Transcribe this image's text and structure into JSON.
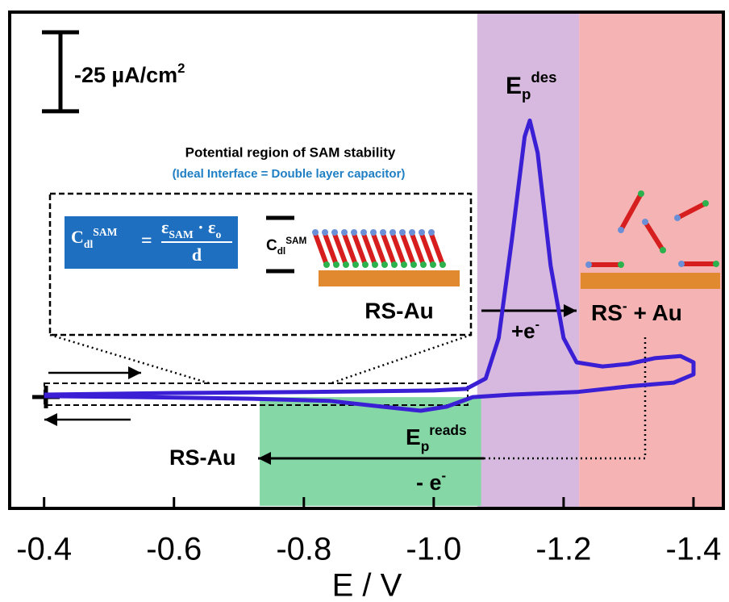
{
  "chart_data": {
    "type": "line",
    "x_label": "E / V",
    "xlim": [
      -0.347,
      -1.446
    ],
    "ylim": [
      36,
      -121
    ],
    "xticks": [
      -0.4,
      -0.6,
      -0.8,
      {
        "value": -1,
        "label": "-1.0"
      },
      -1.2,
      -1.4
    ],
    "color": "#3a1fd4",
    "x": [
      -0.4,
      -0.6,
      -0.8,
      -1.0,
      -1.05,
      -1.08,
      -1.1,
      -1.12,
      -1.14,
      -1.148,
      -1.16,
      -1.18,
      -1.2,
      -1.22,
      -1.26,
      -1.3,
      -1.34,
      -1.38,
      -1.4,
      -1.4,
      -1.37,
      -1.3,
      -1.22,
      -1.12,
      -1.06,
      -1.02,
      -0.98,
      -0.92,
      -0.84,
      -0.72,
      -0.55,
      -0.4
    ],
    "values": [
      0,
      -0.5,
      -0.8,
      -1.3,
      -1.8,
      -5.1,
      -17.9,
      -48.5,
      -81.6,
      -86.7,
      -76.5,
      -40.8,
      -17.9,
      -10.2,
      -8.9,
      -9.7,
      -11.5,
      -12.2,
      -10.2,
      -6.4,
      -3.8,
      -2.6,
      -0.8,
      0,
      0.8,
      3.8,
      5.1,
      3.8,
      2.0,
      1.3,
      0.8,
      0.5
    ],
    "regions": [
      {
        "xlim": [
          -1.067,
          -1.224
        ],
        "color": "#d7b9df"
      },
      {
        "xlim": [
          -1.224,
          -1.446
        ],
        "color": "#f6b3b3"
      },
      {
        "xlim": [
          -0.732,
          -1.073
        ],
        "ylim": [
          0.8,
          35.2
        ],
        "color": "#86d7a6"
      }
    ],
    "scale_bar": {
      "value": -25,
      "label": "-25 µA/cm",
      "label_sup": "2"
    },
    "peak_label": {
      "main": "E",
      "sub": "p",
      "sup": "des"
    },
    "box_title": "Potential region of SAM stability",
    "box_subtitle": "(Ideal Interface = Double layer capacitor)",
    "equation": {
      "lhs": "C",
      "lhs_sub": "dl",
      "lhs_sup": "SAM",
      "eq": "=",
      "num": "ε",
      "num_sub": "SAM",
      "num2": " · ε",
      "num2_sub": "o",
      "den": "d"
    },
    "capacitor_label": {
      "main": "C",
      "sub": "dl",
      "sup": "SAM"
    },
    "sam_label": "RS-Au",
    "reduction_label": {
      "main": "+e",
      "sup": "-"
    },
    "product_label": {
      "main": "RS",
      "sup": "-",
      "rest": " + Au"
    },
    "readsorption_product": "RS-Au",
    "readsorption_peak": {
      "main": "E",
      "sub": "p",
      "sup": "reads"
    },
    "oxidation_label": {
      "main": "- e",
      "sup": "-"
    }
  }
}
